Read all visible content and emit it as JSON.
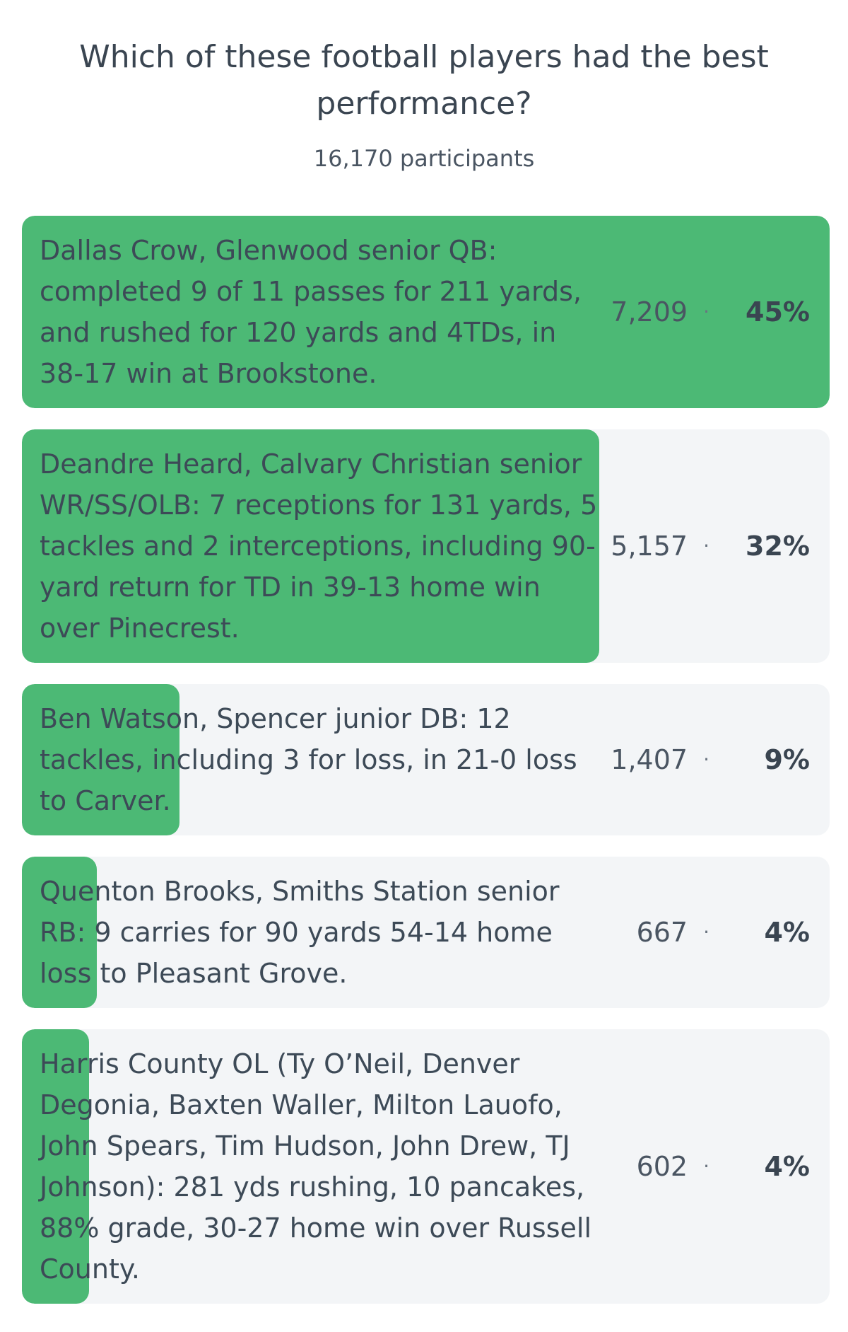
{
  "poll": {
    "question": "Which of these football players had the best performance?",
    "participants_label": "16,170 participants",
    "colors": {
      "bar_fill": "#4cb975",
      "track": "#f3f5f7",
      "text": "#3a4551"
    },
    "options": [
      {
        "label": "Dallas Crow, Glenwood senior QB: completed 9 of 11 passes for 211 yards, and rushed for 120 yards and 4TDs, in 38-17 win at Brookstone.",
        "votes": "7,209",
        "separator": "·",
        "percent_label": "45%",
        "fill_fraction": 1.0
      },
      {
        "label": "Deandre Heard, Calvary Christian senior WR/SS/OLB: 7 receptions for 131 yards, 5 tackles and 2 interceptions, including 90-yard return for TD in 39-13 home win over Pinecrest.",
        "votes": "5,157",
        "separator": "·",
        "percent_label": "32%",
        "fill_fraction": 0.715
      },
      {
        "label": "Ben Watson, Spencer junior DB: 12 tackles, including 3 for loss, in 21-0 loss to Carver.",
        "votes": "1,407",
        "separator": "·",
        "percent_label": "9%",
        "fill_fraction": 0.195
      },
      {
        "label": "Quenton Brooks, Smiths Station senior RB: 9 carries for 90 yards 54-14 home loss to Pleasant Grove.",
        "votes": "667",
        "separator": "·",
        "percent_label": "4%",
        "fill_fraction": 0.093
      },
      {
        "label": "Harris County OL (Ty O’Neil, Denver Degonia, Baxten Waller, Milton Lauofo, John Spears, Tim Hudson, John Drew, TJ Johnson): 281 yds rushing, 10 pancakes, 88% grade, 30-27 home win over Russell County.",
        "votes": "602",
        "separator": "·",
        "percent_label": "4%",
        "fill_fraction": 0.083
      }
    ]
  }
}
